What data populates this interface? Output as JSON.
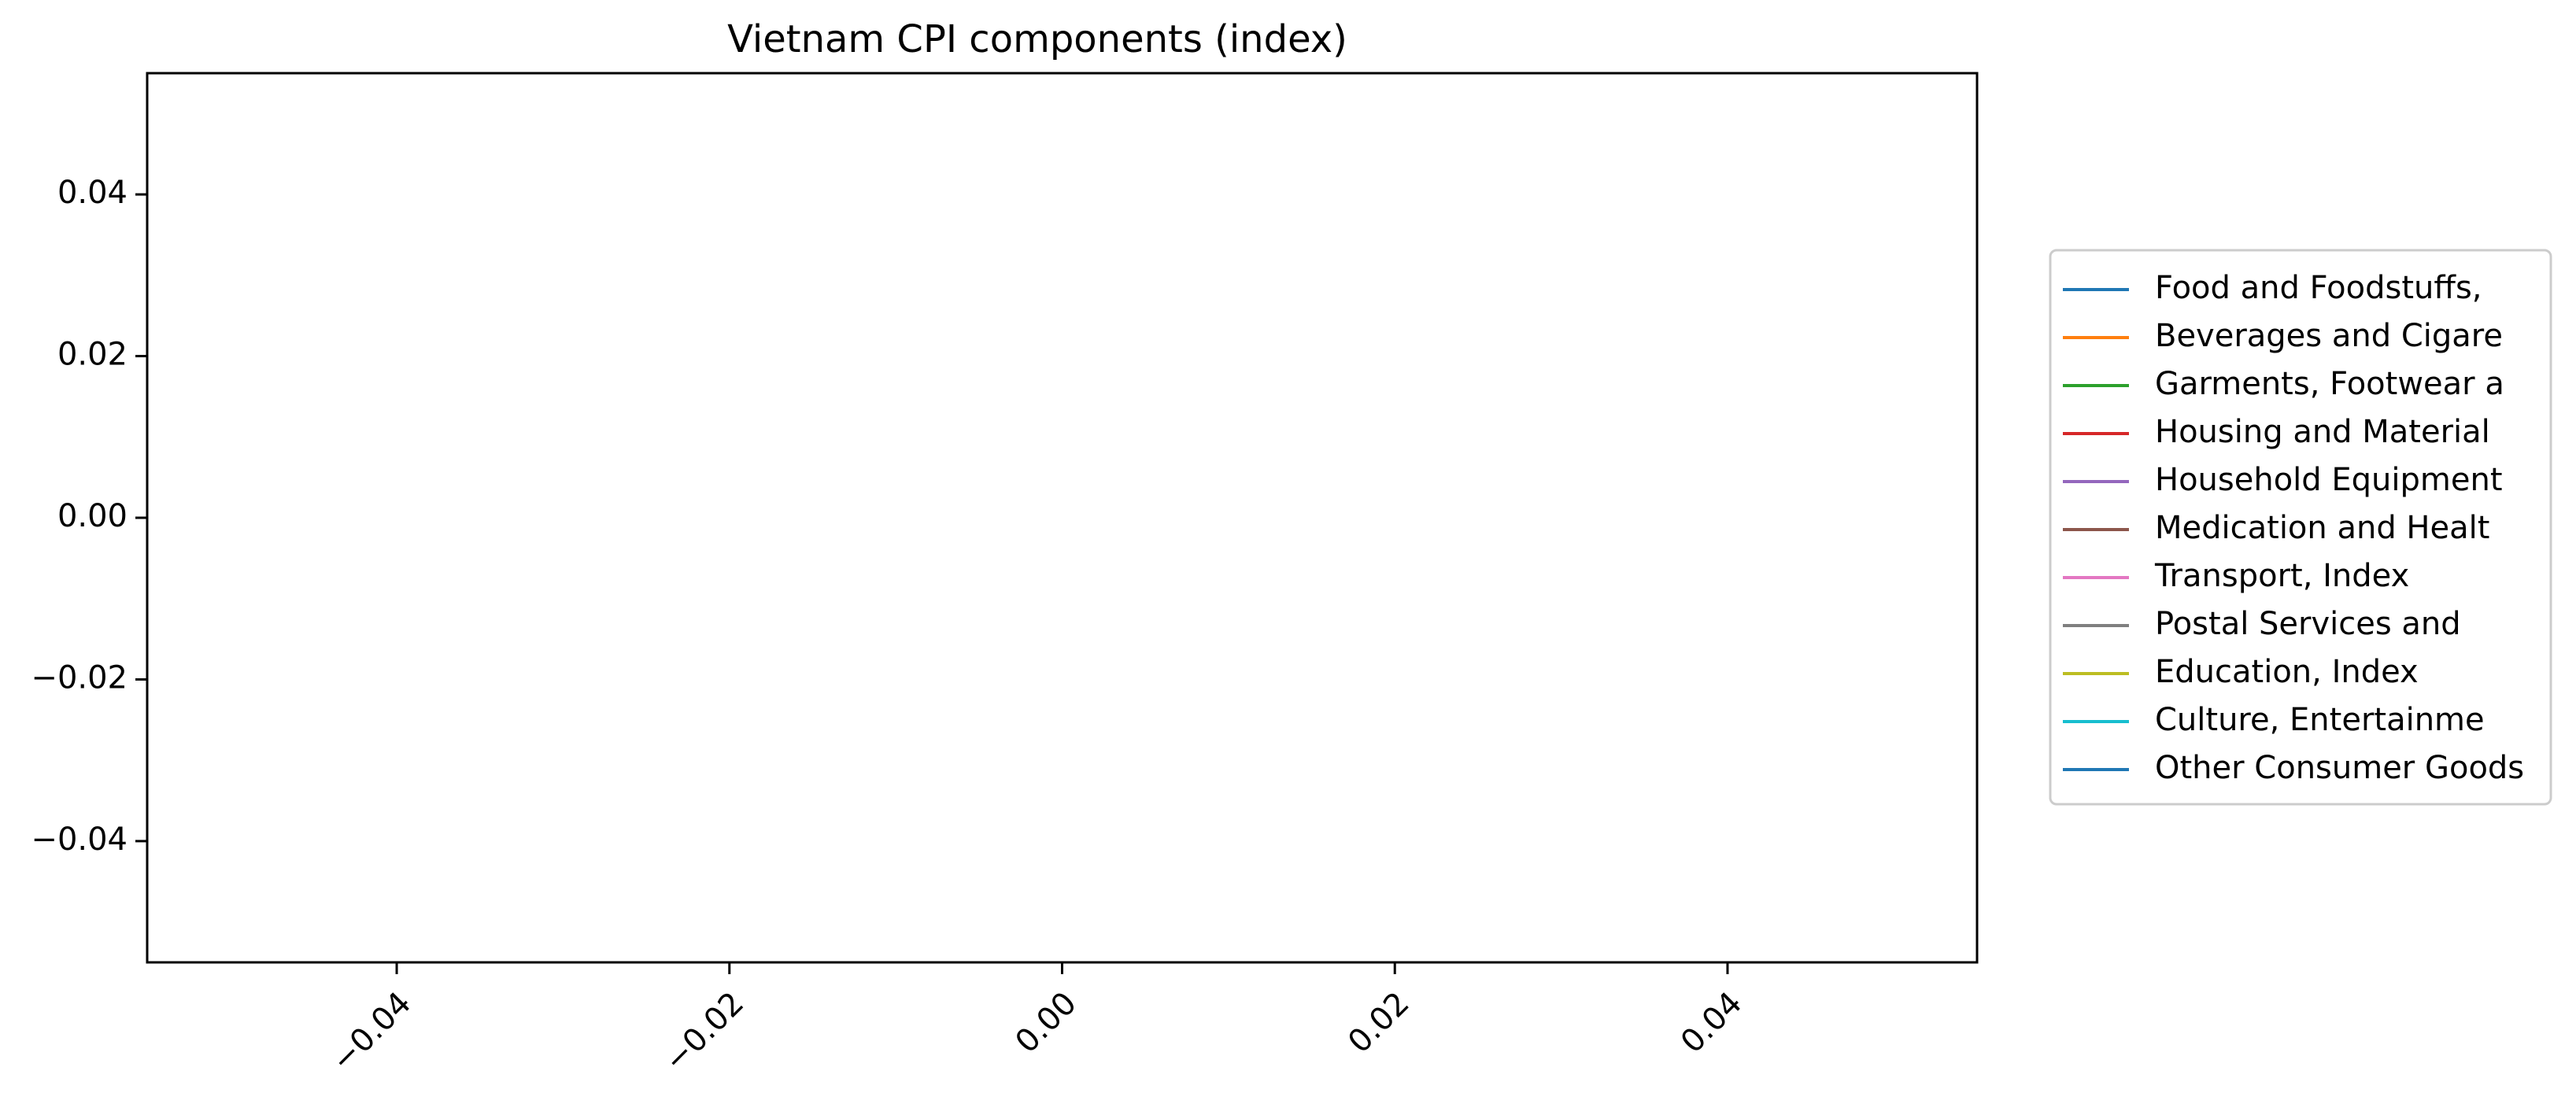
{
  "chart_data": {
    "type": "line",
    "title": "Vietnam CPI components (index)",
    "xlabel": "",
    "ylabel": "",
    "xlim": [
      -0.055,
      0.055
    ],
    "ylim": [
      -0.055,
      0.055
    ],
    "x_ticks": [
      "−0.04",
      "−0.02",
      "0.00",
      "0.02",
      "0.04"
    ],
    "x_tick_values": [
      -0.04,
      -0.02,
      0.0,
      0.02,
      0.04
    ],
    "y_ticks": [
      "0.04",
      "0.02",
      "0.00",
      "−0.02",
      "−0.04"
    ],
    "y_tick_values": [
      0.04,
      0.02,
      0.0,
      -0.02,
      -0.04
    ],
    "grid": false,
    "legend_position": "right",
    "series": [
      {
        "name": "Food and Foodstuffs,",
        "color": "#1f77b4",
        "x": [],
        "y": []
      },
      {
        "name": "Beverages and Cigare",
        "color": "#ff7f0e",
        "x": [],
        "y": []
      },
      {
        "name": "Garments, Footwear a",
        "color": "#2ca02c",
        "x": [],
        "y": []
      },
      {
        "name": "Housing and Material",
        "color": "#d62728",
        "x": [],
        "y": []
      },
      {
        "name": "Household Equipment",
        "color": "#9467bd",
        "x": [],
        "y": []
      },
      {
        "name": "Medication and Healt",
        "color": "#8c564b",
        "x": [],
        "y": []
      },
      {
        "name": "Transport, Index",
        "color": "#e377c2",
        "x": [],
        "y": []
      },
      {
        "name": "Postal Services and",
        "color": "#7f7f7f",
        "x": [],
        "y": []
      },
      {
        "name": "Education, Index",
        "color": "#bcbd22",
        "x": [],
        "y": []
      },
      {
        "name": "Culture, Entertainme",
        "color": "#17becf",
        "x": [],
        "y": []
      },
      {
        "name": "Other Consumer Goods",
        "color": "#1f77b4",
        "x": [],
        "y": []
      }
    ]
  }
}
